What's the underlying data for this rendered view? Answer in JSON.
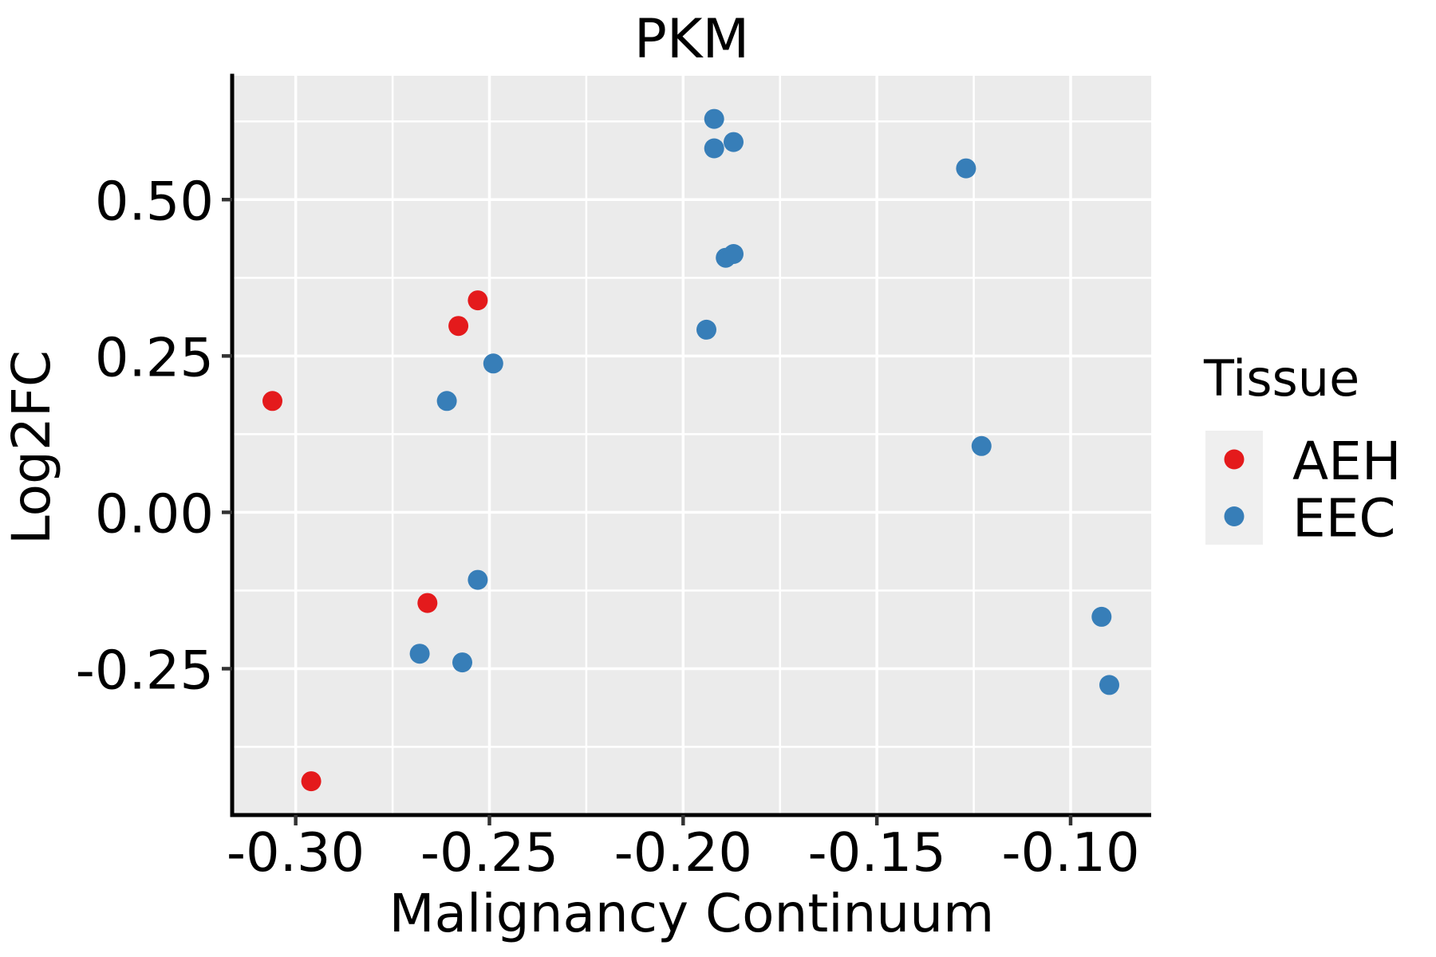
{
  "title": "PKM",
  "colors": {
    "panel_bg": "#EBEBEB",
    "grid": "#FFFFFF",
    "axis_line": "#000000",
    "tick": "#333333",
    "legend_key_bg": "#EFEFEF",
    "text": "#000000",
    "aeh_red": "#E41A1C",
    "eec_blue": "#377EB8"
  },
  "chart_data": {
    "type": "scatter",
    "title": "PKM",
    "grid": "major+minor",
    "x_axis": {
      "label": "Malignancy Continuum",
      "tick_labels": [
        "-0.30",
        "-0.25",
        "-0.20",
        "-0.15",
        "-0.10"
      ],
      "tick_values": [
        -0.3,
        -0.25,
        -0.2,
        -0.15,
        -0.1
      ],
      "minor_tick_values": [
        -0.275,
        -0.225,
        -0.175,
        -0.125
      ],
      "range": [
        -0.3164,
        -0.0792
      ]
    },
    "y_axis": {
      "label": "Log2FC",
      "tick_labels": [
        "0.50",
        "0.25",
        "0.00",
        "-0.25"
      ],
      "tick_values": [
        0.5,
        0.25,
        0.0,
        -0.25
      ],
      "minor_tick_values": [
        0.625,
        0.375,
        0.125,
        -0.125,
        -0.375
      ],
      "range": [
        -0.484,
        0.698
      ]
    },
    "legend": {
      "title": "Tissue",
      "position": "right",
      "entries": [
        {
          "label": "AEH",
          "color": "#E41A1C"
        },
        {
          "label": "EEC",
          "color": "#377EB8"
        }
      ]
    },
    "series": [
      {
        "name": "AEH",
        "color": "#E41A1C",
        "points": [
          [
            -0.306,
            0.178
          ],
          [
            -0.296,
            -0.43
          ],
          [
            -0.266,
            -0.145
          ],
          [
            -0.258,
            0.298
          ],
          [
            -0.253,
            0.339
          ]
        ]
      },
      {
        "name": "EEC",
        "color": "#377EB8",
        "points": [
          [
            -0.268,
            -0.226
          ],
          [
            -0.261,
            0.178
          ],
          [
            -0.257,
            -0.24
          ],
          [
            -0.253,
            -0.108
          ],
          [
            -0.249,
            0.238
          ],
          [
            -0.194,
            0.292
          ],
          [
            -0.192,
            0.629
          ],
          [
            -0.192,
            0.582
          ],
          [
            -0.189,
            0.407
          ],
          [
            -0.187,
            0.413
          ],
          [
            -0.187,
            0.592
          ],
          [
            -0.127,
            0.55
          ],
          [
            -0.123,
            0.106
          ],
          [
            -0.092,
            -0.167
          ],
          [
            -0.09,
            -0.276
          ]
        ]
      }
    ]
  }
}
